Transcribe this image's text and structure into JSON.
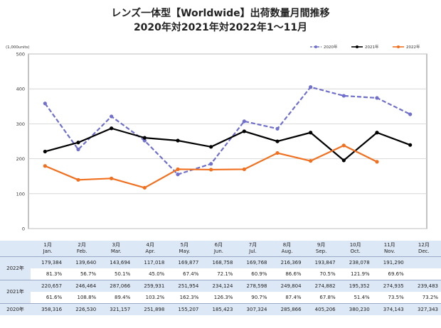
{
  "title": "レンズ一体型【Worldwide】出荷数量月間推移",
  "subtitle": "2020年対2021年対2022年1～11月",
  "chart_data": {
    "type": "line",
    "ylabel": "(1,000units)",
    "ylim": [
      0,
      500
    ],
    "yticks": [
      0,
      100,
      200,
      300,
      400,
      500
    ],
    "x": [
      "1月",
      "2月",
      "3月",
      "4月",
      "5月",
      "6月",
      "7月",
      "8月",
      "9月",
      "10月",
      "11月",
      "12月"
    ],
    "grid": true,
    "legend_position": "top-right",
    "series": [
      {
        "name": "2020年",
        "color": "#7070cc",
        "dash": true,
        "values": [
          358.3,
          226.5,
          321.2,
          251.9,
          155.2,
          185.4,
          307.3,
          285.9,
          405.2,
          380.2,
          374.1,
          327.3
        ]
      },
      {
        "name": "2021年",
        "color": "#000000",
        "dash": false,
        "values": [
          220.7,
          246.5,
          287.1,
          259.9,
          252.0,
          234.1,
          278.6,
          249.8,
          274.9,
          195.4,
          274.9,
          239.5
        ]
      },
      {
        "name": "2022年",
        "color": "#f07020",
        "dash": false,
        "values": [
          179.4,
          139.6,
          143.7,
          117.0,
          169.9,
          168.8,
          169.8,
          216.4,
          193.8,
          238.1,
          191.3,
          null
        ]
      }
    ]
  },
  "table": {
    "months": [
      {
        "jp": "1月",
        "en": "Jan."
      },
      {
        "jp": "2月",
        "en": "Feb."
      },
      {
        "jp": "3月",
        "en": "Mar."
      },
      {
        "jp": "4月",
        "en": "Apr."
      },
      {
        "jp": "5月",
        "en": "May."
      },
      {
        "jp": "6月",
        "en": "Jun."
      },
      {
        "jp": "7月",
        "en": "Jul."
      },
      {
        "jp": "8月",
        "en": "Aug."
      },
      {
        "jp": "9月",
        "en": "Sep."
      },
      {
        "jp": "10月",
        "en": "Oct."
      },
      {
        "jp": "11月",
        "en": "Nov."
      },
      {
        "jp": "12月",
        "en": "Dec."
      }
    ],
    "rows": [
      {
        "year": "2022年",
        "values": [
          "179,384",
          "139,640",
          "143,694",
          "117,018",
          "169,877",
          "168,758",
          "169,768",
          "216,369",
          "193,847",
          "238,078",
          "191,290",
          ""
        ],
        "pct": [
          "81.3%",
          "56.7%",
          "50.1%",
          "45.0%",
          "67.4%",
          "72.1%",
          "60.9%",
          "86.6%",
          "70.5%",
          "121.9%",
          "69.6%",
          ""
        ]
      },
      {
        "year": "2021年",
        "values": [
          "220,657",
          "246,464",
          "287,066",
          "259,931",
          "251,954",
          "234,124",
          "278,598",
          "249,804",
          "274,882",
          "195,352",
          "274,935",
          "239,483"
        ],
        "pct": [
          "61.6%",
          "108.8%",
          "89.4%",
          "103.2%",
          "162.3%",
          "126.3%",
          "90.7%",
          "87.4%",
          "67.8%",
          "51.4%",
          "73.5%",
          "73.2%"
        ]
      },
      {
        "year": "2020年",
        "values": [
          "358,316",
          "226,530",
          "321,157",
          "251,898",
          "155,207",
          "185,423",
          "307,324",
          "285,866",
          "405,206",
          "380,230",
          "374,143",
          "327,343"
        ],
        "pct": []
      }
    ]
  }
}
